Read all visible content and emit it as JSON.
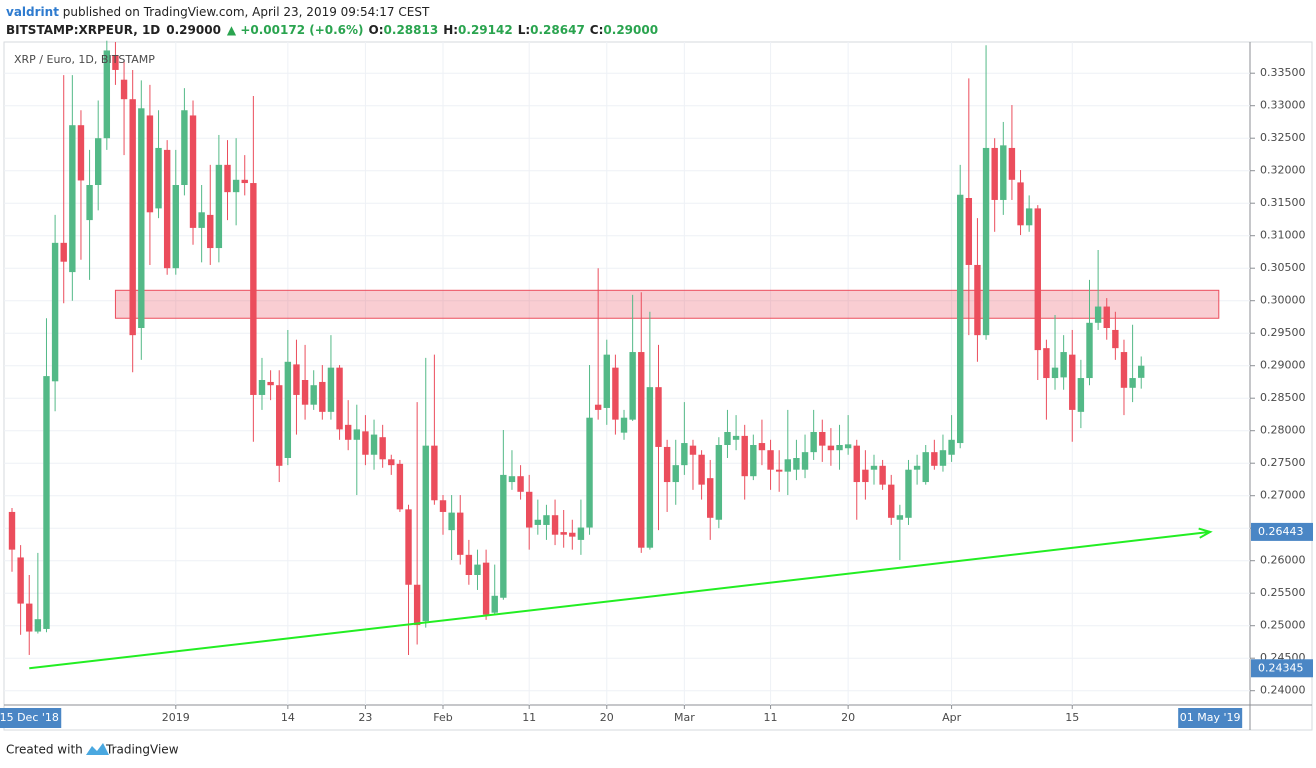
{
  "header": {
    "author": "valdrint",
    "published": " published on TradingView.com, April 23, 2019 09:54:17 CEST",
    "symbol": "BITSTAMP:XRPEUR, 1D",
    "price": "0.29000",
    "change": "▲ +0.00172 (+0.6%)",
    "ohlc": [
      {
        "label": "O:",
        "value": "0.28813"
      },
      {
        "label": "H:",
        "value": "0.29142"
      },
      {
        "label": "L:",
        "value": "0.28647"
      },
      {
        "label": "C:",
        "value": "0.29000"
      }
    ]
  },
  "footer": {
    "created": "Created with",
    "brand": "TradingView"
  },
  "chart_data": {
    "type": "candlestick",
    "title": "XRP / Euro, 1D, BITSTAMP",
    "up_color": "#53b987",
    "down_color": "#eb4d5c",
    "grid": true,
    "x": [
      "2018-12-13",
      "2018-12-14",
      "2018-12-15",
      "2018-12-16",
      "2018-12-17",
      "2018-12-18",
      "2018-12-19",
      "2018-12-20",
      "2018-12-21",
      "2018-12-22",
      "2018-12-23",
      "2018-12-24",
      "2018-12-25",
      "2018-12-26",
      "2018-12-27",
      "2018-12-28",
      "2018-12-29",
      "2018-12-30",
      "2018-12-31",
      "2019-01-01",
      "2019-01-02",
      "2019-01-03",
      "2019-01-04",
      "2019-01-05",
      "2019-01-06",
      "2019-01-07",
      "2019-01-08",
      "2019-01-09",
      "2019-01-10",
      "2019-01-11",
      "2019-01-12",
      "2019-01-13",
      "2019-01-14",
      "2019-01-15",
      "2019-01-16",
      "2019-01-17",
      "2019-01-18",
      "2019-01-19",
      "2019-01-20",
      "2019-01-21",
      "2019-01-22",
      "2019-01-23",
      "2019-01-24",
      "2019-01-25",
      "2019-01-26",
      "2019-01-27",
      "2019-01-28",
      "2019-01-29",
      "2019-01-30",
      "2019-01-31",
      "2019-02-01",
      "2019-02-02",
      "2019-02-03",
      "2019-02-04",
      "2019-02-05",
      "2019-02-06",
      "2019-02-07",
      "2019-02-08",
      "2019-02-09",
      "2019-02-10",
      "2019-02-11",
      "2019-02-12",
      "2019-02-13",
      "2019-02-14",
      "2019-02-15",
      "2019-02-16",
      "2019-02-17",
      "2019-02-18",
      "2019-02-19",
      "2019-02-20",
      "2019-02-21",
      "2019-02-22",
      "2019-02-23",
      "2019-02-24",
      "2019-02-25",
      "2019-02-26",
      "2019-02-27",
      "2019-02-28",
      "2019-03-01",
      "2019-03-02",
      "2019-03-03",
      "2019-03-04",
      "2019-03-05",
      "2019-03-06",
      "2019-03-07",
      "2019-03-08",
      "2019-03-09",
      "2019-03-10",
      "2019-03-11",
      "2019-03-12",
      "2019-03-13",
      "2019-03-14",
      "2019-03-15",
      "2019-03-16",
      "2019-03-17",
      "2019-03-18",
      "2019-03-19",
      "2019-03-20",
      "2019-03-21",
      "2019-03-22",
      "2019-03-23",
      "2019-03-24",
      "2019-03-25",
      "2019-03-26",
      "2019-03-27",
      "2019-03-28",
      "2019-03-29",
      "2019-03-30",
      "2019-03-31",
      "2019-04-01",
      "2019-04-02",
      "2019-04-03",
      "2019-04-04",
      "2019-04-05",
      "2019-04-06",
      "2019-04-07",
      "2019-04-08",
      "2019-04-09",
      "2019-04-10",
      "2019-04-11",
      "2019-04-12",
      "2019-04-13",
      "2019-04-14",
      "2019-04-15",
      "2019-04-16",
      "2019-04-17",
      "2019-04-18",
      "2019-04-19",
      "2019-04-20",
      "2019-04-21",
      "2019-04-22",
      "2019-04-23"
    ],
    "open": [
      0.2675,
      0.2605,
      0.2534,
      0.2491,
      0.2495,
      0.2876,
      0.3089,
      0.3044,
      0.327,
      0.3124,
      0.3178,
      0.325,
      0.3378,
      0.334,
      0.331,
      0.2958,
      0.3285,
      0.3142,
      0.3232,
      0.305,
      0.3178,
      0.3285,
      0.3112,
      0.3132,
      0.3081,
      0.3209,
      0.3167,
      0.3186,
      0.3181,
      0.2855,
      0.2875,
      0.287,
      0.2758,
      0.2902,
      0.2878,
      0.284,
      0.2875,
      0.2829,
      0.2897,
      0.2809,
      0.2786,
      0.2799,
      0.2763,
      0.279,
      0.2756,
      0.2749,
      0.2679,
      0.2563,
      0.2507,
      0.2777,
      0.2693,
      0.2647,
      0.2674,
      0.2609,
      0.2578,
      0.2597,
      0.252,
      0.2543,
      0.2721,
      0.273,
      0.2706,
      0.2655,
      0.2655,
      0.267,
      0.2644,
      0.2643,
      0.2632,
      0.2651,
      0.284,
      0.2835,
      0.2897,
      0.2797,
      0.2817,
      0.2921,
      0.262,
      0.2867,
      0.2775,
      0.2721,
      0.2747,
      0.2777,
      0.2763,
      0.2727,
      0.2663,
      0.2778,
      0.2786,
      0.2792,
      0.273,
      0.2781,
      0.277,
      0.274,
      0.2737,
      0.274,
      0.274,
      0.2767,
      0.2798,
      0.2777,
      0.277,
      0.2773,
      0.2777,
      0.274,
      0.274,
      0.2746,
      0.2717,
      0.2663,
      0.2666,
      0.274,
      0.2721,
      0.2767,
      0.2746,
      0.2763,
      0.2781,
      0.3158,
      0.3055,
      0.2947,
      0.3235,
      0.3155,
      0.3235,
      0.3182,
      0.3116,
      0.3142,
      0.2927,
      0.2881,
      0.2882,
      0.2917,
      0.2829,
      0.2881,
      0.2966,
      0.2991,
      0.2955,
      0.2921,
      0.2866,
      0.28813
    ],
    "high": [
      0.2681,
      0.2624,
      0.2578,
      0.2612,
      0.2973,
      0.3132,
      0.3347,
      0.3347,
      0.3293,
      0.3232,
      0.3308,
      0.34,
      0.3398,
      0.337,
      0.3355,
      0.3339,
      0.3332,
      0.3293,
      0.3247,
      0.3232,
      0.3327,
      0.3308,
      0.3178,
      0.3209,
      0.3255,
      0.3247,
      0.325,
      0.3224,
      0.3315,
      0.2912,
      0.2893,
      0.2893,
      0.2955,
      0.294,
      0.2932,
      0.2893,
      0.2901,
      0.2947,
      0.2901,
      0.2847,
      0.284,
      0.2824,
      0.2817,
      0.2809,
      0.2763,
      0.2755,
      0.2686,
      0.2844,
      0.2912,
      0.2917,
      0.2701,
      0.2701,
      0.2701,
      0.2632,
      0.2617,
      0.2617,
      0.2594,
      0.2801,
      0.277,
      0.2747,
      0.2732,
      0.2694,
      0.2686,
      0.2694,
      0.2678,
      0.2663,
      0.2694,
      0.2901,
      0.305,
      0.294,
      0.2917,
      0.2832,
      0.3009,
      0.3013,
      0.2983,
      0.2932,
      0.2786,
      0.2786,
      0.2844,
      0.2786,
      0.277,
      0.2755,
      0.279,
      0.2832,
      0.2824,
      0.2809,
      0.2794,
      0.2817,
      0.2786,
      0.277,
      0.2832,
      0.2786,
      0.2794,
      0.2832,
      0.2817,
      0.2804,
      0.2809,
      0.2824,
      0.2786,
      0.277,
      0.2763,
      0.2755,
      0.2732,
      0.2686,
      0.2755,
      0.2763,
      0.2778,
      0.2786,
      0.2794,
      0.2824,
      0.3209,
      0.3342,
      0.3127,
      0.3393,
      0.325,
      0.3275,
      0.3301,
      0.3201,
      0.3162,
      0.3147,
      0.294,
      0.2978,
      0.2947,
      0.2955,
      0.2909,
      0.3032,
      0.3078,
      0.3004,
      0.2983,
      0.294,
      0.2963,
      0.29142
    ],
    "low": [
      0.2583,
      0.2486,
      0.2455,
      0.2488,
      0.249,
      0.283,
      0.2996,
      0.3,
      0.3063,
      0.3032,
      0.3139,
      0.3232,
      0.3332,
      0.3224,
      0.289,
      0.2909,
      0.3055,
      0.3127,
      0.304,
      0.304,
      0.3162,
      0.3086,
      0.3059,
      0.3055,
      0.3059,
      0.3124,
      0.3116,
      0.3162,
      0.2783,
      0.2832,
      0.2847,
      0.2721,
      0.2747,
      0.2794,
      0.2817,
      0.2832,
      0.2817,
      0.2817,
      0.2786,
      0.277,
      0.2701,
      0.2747,
      0.274,
      0.2743,
      0.2732,
      0.2675,
      0.2455,
      0.2471,
      0.2497,
      0.2686,
      0.264,
      0.2601,
      0.2594,
      0.2563,
      0.2555,
      0.2509,
      0.2517,
      0.254,
      0.2709,
      0.2694,
      0.2617,
      0.264,
      0.2632,
      0.2624,
      0.262,
      0.2617,
      0.2609,
      0.264,
      0.2817,
      0.2809,
      0.2794,
      0.2786,
      0.2815,
      0.2612,
      0.2617,
      0.2647,
      0.2675,
      0.2686,
      0.2732,
      0.2709,
      0.2694,
      0.2632,
      0.265,
      0.2758,
      0.277,
      0.2694,
      0.2724,
      0.2747,
      0.2709,
      0.2706,
      0.2701,
      0.2724,
      0.2727,
      0.2755,
      0.2752,
      0.2746,
      0.274,
      0.2763,
      0.2663,
      0.2694,
      0.2717,
      0.2709,
      0.2655,
      0.2601,
      0.2655,
      0.2717,
      0.2717,
      0.274,
      0.2737,
      0.2752,
      0.2773,
      0.2947,
      0.2906,
      0.294,
      0.3106,
      0.3132,
      0.3155,
      0.3101,
      0.3106,
      0.2878,
      0.2817,
      0.2863,
      0.2863,
      0.2783,
      0.2804,
      0.287,
      0.2955,
      0.294,
      0.2909,
      0.2824,
      0.2844,
      0.28647
    ],
    "close": [
      0.2617,
      0.2534,
      0.2491,
      0.251,
      0.2884,
      0.3089,
      0.306,
      0.327,
      0.3185,
      0.3178,
      0.325,
      0.3385,
      0.3355,
      0.331,
      0.2947,
      0.3296,
      0.3136,
      0.3235,
      0.305,
      0.3178,
      0.3293,
      0.3112,
      0.3136,
      0.3081,
      0.3209,
      0.3167,
      0.3186,
      0.3181,
      0.2855,
      0.2878,
      0.287,
      0.2746,
      0.2906,
      0.2855,
      0.284,
      0.287,
      0.2829,
      0.2897,
      0.2802,
      0.2786,
      0.2802,
      0.2763,
      0.2794,
      0.2756,
      0.2747,
      0.2679,
      0.2563,
      0.2501,
      0.2777,
      0.2693,
      0.2675,
      0.2674,
      0.2609,
      0.2578,
      0.2594,
      0.2517,
      0.2546,
      0.2732,
      0.273,
      0.2706,
      0.2651,
      0.2663,
      0.267,
      0.264,
      0.264,
      0.2637,
      0.2651,
      0.282,
      0.2832,
      0.2917,
      0.2817,
      0.282,
      0.2921,
      0.262,
      0.2867,
      0.2775,
      0.2721,
      0.2747,
      0.2781,
      0.2763,
      0.2717,
      0.2666,
      0.2778,
      0.2798,
      0.2792,
      0.273,
      0.2778,
      0.277,
      0.274,
      0.2737,
      0.2756,
      0.2758,
      0.2767,
      0.2798,
      0.2777,
      0.277,
      0.2778,
      0.2779,
      0.2721,
      0.2721,
      0.2746,
      0.2717,
      0.2666,
      0.267,
      0.274,
      0.2746,
      0.2767,
      0.2746,
      0.277,
      0.2786,
      0.3163,
      0.3055,
      0.2947,
      0.3235,
      0.3155,
      0.3239,
      0.3186,
      0.3116,
      0.3142,
      0.2924,
      0.2881,
      0.2897,
      0.2921,
      0.2832,
      0.2881,
      0.2966,
      0.2991,
      0.2958,
      0.2927,
      0.2866,
      0.2881,
      0.29
    ],
    "ylim": [
      0.2378,
      0.3398
    ],
    "yticks": [
      {
        "value": 0.24,
        "label": "0.24000"
      },
      {
        "value": 0.245,
        "label": "0.24500"
      },
      {
        "value": 0.25,
        "label": "0.25000"
      },
      {
        "value": 0.255,
        "label": "0.25500"
      },
      {
        "value": 0.26,
        "label": "0.26000"
      },
      {
        "value": 0.265,
        "label": "0.26500"
      },
      {
        "value": 0.27,
        "label": "0.27000"
      },
      {
        "value": 0.275,
        "label": "0.27500"
      },
      {
        "value": 0.28,
        "label": "0.28000"
      },
      {
        "value": 0.285,
        "label": "0.28500"
      },
      {
        "value": 0.29,
        "label": "0.29000"
      },
      {
        "value": 0.295,
        "label": "0.29500"
      },
      {
        "value": 0.3,
        "label": "0.30000"
      },
      {
        "value": 0.305,
        "label": "0.30500"
      },
      {
        "value": 0.31,
        "label": "0.31000"
      },
      {
        "value": 0.315,
        "label": "0.31500"
      },
      {
        "value": 0.32,
        "label": "0.32000"
      },
      {
        "value": 0.325,
        "label": "0.32500"
      },
      {
        "value": 0.33,
        "label": "0.33000"
      },
      {
        "value": 0.335,
        "label": "0.33500"
      }
    ],
    "xticks": [
      {
        "value": "2019-01-01",
        "label": "2019"
      },
      {
        "value": "2019-01-14",
        "label": "14"
      },
      {
        "value": "2019-01-23",
        "label": "23"
      },
      {
        "value": "2019-02-01",
        "label": "Feb"
      },
      {
        "value": "2019-02-11",
        "label": "11"
      },
      {
        "value": "2019-02-20",
        "label": "20"
      },
      {
        "value": "2019-03-01",
        "label": "Mar"
      },
      {
        "value": "2019-03-11",
        "label": "11"
      },
      {
        "value": "2019-03-20",
        "label": "20"
      },
      {
        "value": "2019-04-01",
        "label": "Apr"
      },
      {
        "value": "2019-04-15",
        "label": "15"
      }
    ],
    "trendline": {
      "color": "#22ee22",
      "start": {
        "x": "2018-12-15",
        "x_label": "15 Dec '18",
        "y": 0.24345
      },
      "end": {
        "x": "2019-05-01",
        "x_label": "01 May '19",
        "y": 0.26443
      }
    },
    "zone": {
      "color": "#eb4d5c",
      "x0": "2018-12-25",
      "x1": "2019-05-02",
      "y0": 0.2973,
      "y1": 0.3016
    }
  }
}
